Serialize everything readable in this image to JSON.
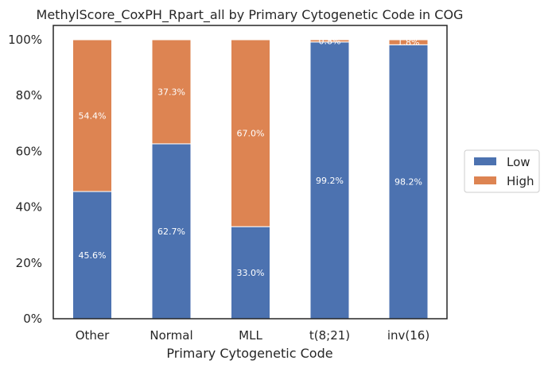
{
  "chart_data": {
    "type": "bar",
    "stacked": true,
    "title": "MethylScore_CoxPH_Rpart_all by Primary Cytogenetic Code in COG",
    "xlabel": "Primary Cytogenetic Code",
    "ylabel": "",
    "categories": [
      "Other",
      "Normal",
      "MLL",
      "t(8;21)",
      "inv(16)"
    ],
    "series": [
      {
        "name": "Low",
        "values": [
          45.6,
          62.7,
          33.0,
          99.2,
          98.2
        ],
        "labels": [
          "45.6%",
          "62.7%",
          "33.0%",
          "99.2%",
          "98.2%"
        ],
        "color": "#4c72b0"
      },
      {
        "name": "High",
        "values": [
          54.4,
          37.3,
          67.0,
          0.8,
          1.8
        ],
        "labels": [
          "54.4%",
          "37.3%",
          "67.0%",
          "0.8%",
          "1.8%"
        ],
        "color": "#dd8452"
      }
    ],
    "ylim": [
      0,
      100
    ],
    "yticks": [
      "0%",
      "20%",
      "40%",
      "60%",
      "80%",
      "100%"
    ],
    "ytick_values": [
      0,
      20,
      40,
      60,
      80,
      100
    ],
    "grid": false,
    "legend_position": "right"
  }
}
